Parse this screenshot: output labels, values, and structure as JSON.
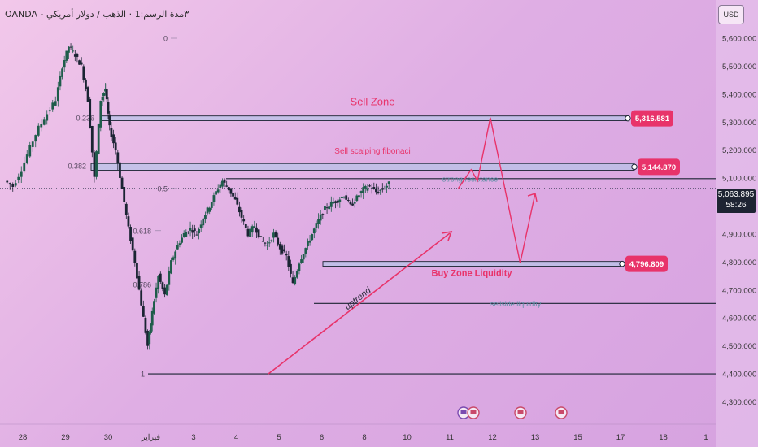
{
  "header": {
    "symbol": "OANDA - ٣مدة الرسم:1 · الذهب / دولار أمريكي",
    "currency_button": "USD"
  },
  "last_price": {
    "value": "5,063.895",
    "countdown": "58:26"
  },
  "colors": {
    "candle_up": "#1e5c4a",
    "candle_down": "#1b2433",
    "arrow": "#e8336a",
    "zone_fill": "#b7c4e8",
    "label_bg": "#e8336a",
    "teal_text": "#5b8fa4"
  },
  "chart_data": {
    "type": "candlestick",
    "title": "",
    "xlabel": "",
    "ylabel": "",
    "ylim": [
      4262,
      5650
    ],
    "y_ticks": [
      {
        "value": 5600,
        "label": "5,600.000"
      },
      {
        "value": 5500,
        "label": "5,500.000"
      },
      {
        "value": 5400,
        "label": "5,400.000"
      },
      {
        "value": 5300,
        "label": "5,300.000"
      },
      {
        "value": 5200,
        "label": "5,200.000"
      },
      {
        "value": 5100,
        "label": "5,100.000"
      },
      {
        "value": 4900,
        "label": "4,900.000"
      },
      {
        "value": 4800,
        "label": "4,800.000"
      },
      {
        "value": 4700,
        "label": "4,700.000"
      },
      {
        "value": 4600,
        "label": "4,600.000"
      },
      {
        "value": 4500,
        "label": "4,500.000"
      },
      {
        "value": 4400,
        "label": "4,400.000"
      },
      {
        "value": 4300,
        "label": "4,300.000"
      }
    ],
    "x_ticks": [
      {
        "x": 28,
        "label": "28"
      },
      {
        "x": 29,
        "label": "29"
      },
      {
        "x": 30,
        "label": "30"
      },
      {
        "x": 31,
        "label": "فبراير"
      },
      {
        "x": 32,
        "label": "3"
      },
      {
        "x": 33,
        "label": "4"
      },
      {
        "x": 34,
        "label": "5"
      },
      {
        "x": 35,
        "label": "6"
      },
      {
        "x": 36,
        "label": "8"
      },
      {
        "x": 37,
        "label": "10"
      },
      {
        "x": 38,
        "label": "11"
      },
      {
        "x": 39,
        "label": "12"
      },
      {
        "x": 40,
        "label": "13"
      },
      {
        "x": 41,
        "label": "15"
      },
      {
        "x": 42,
        "label": "17"
      },
      {
        "x": 43,
        "label": "18"
      },
      {
        "x": 44,
        "label": "1"
      }
    ],
    "price_series": [
      [
        27.6,
        5090
      ],
      [
        27.8,
        5070
      ],
      [
        28.0,
        5130
      ],
      [
        28.2,
        5210
      ],
      [
        28.4,
        5280
      ],
      [
        28.6,
        5330
      ],
      [
        28.8,
        5380
      ],
      [
        28.95,
        5500
      ],
      [
        29.1,
        5570
      ],
      [
        29.25,
        5540
      ],
      [
        29.4,
        5500
      ],
      [
        29.55,
        5380
      ],
      [
        29.7,
        5100
      ],
      [
        29.85,
        5380
      ],
      [
        29.95,
        5420
      ],
      [
        30.05,
        5280
      ],
      [
        30.2,
        5200
      ],
      [
        30.35,
        5060
      ],
      [
        30.5,
        4920
      ],
      [
        30.65,
        4800
      ],
      [
        30.8,
        4650
      ],
      [
        30.95,
        4500
      ],
      [
        31.05,
        4620
      ],
      [
        31.2,
        4750
      ],
      [
        31.35,
        4680
      ],
      [
        31.5,
        4800
      ],
      [
        31.65,
        4860
      ],
      [
        31.8,
        4900
      ],
      [
        31.95,
        4920
      ],
      [
        32.1,
        4900
      ],
      [
        32.25,
        4960
      ],
      [
        32.4,
        5000
      ],
      [
        32.55,
        5050
      ],
      [
        32.7,
        5090
      ],
      [
        32.85,
        5060
      ],
      [
        33.0,
        5020
      ],
      [
        33.15,
        4960
      ],
      [
        33.3,
        4900
      ],
      [
        33.45,
        4930
      ],
      [
        33.6,
        4880
      ],
      [
        33.75,
        4860
      ],
      [
        33.9,
        4900
      ],
      [
        34.05,
        4850
      ],
      [
        34.2,
        4820
      ],
      [
        34.35,
        4720
      ],
      [
        34.5,
        4800
      ],
      [
        34.65,
        4850
      ],
      [
        34.8,
        4900
      ],
      [
        34.95,
        4950
      ],
      [
        35.1,
        4990
      ],
      [
        35.25,
        5010
      ],
      [
        35.4,
        5020
      ],
      [
        35.55,
        5040
      ],
      [
        35.7,
        5000
      ],
      [
        35.85,
        5030
      ],
      [
        36.0,
        5060
      ],
      [
        36.15,
        5070
      ],
      [
        36.3,
        5050
      ],
      [
        36.45,
        5060
      ],
      [
        36.6,
        5080
      ]
    ],
    "fibonacci_levels": [
      {
        "level": "0",
        "price": 5600
      },
      {
        "level": "0.236",
        "price": 5316
      },
      {
        "level": "0.382",
        "price": 5144
      },
      {
        "level": "0.5",
        "price": 5063
      },
      {
        "level": "0.618",
        "price": 4912
      },
      {
        "level": "0.786",
        "price": 4720
      },
      {
        "level": "1",
        "price": 4400
      }
    ],
    "zones": [
      {
        "name": "Sell Zone",
        "price_top": 5322,
        "price_bottom": 5305,
        "price_label": "5,316.581"
      },
      {
        "name": "Sell scalping fibonaci",
        "price_top": 5152,
        "price_bottom": 5128,
        "price_label": "5,144.870"
      },
      {
        "name": "Buy Zone Liquidity",
        "price_top": 4802,
        "price_bottom": 4785,
        "price_label": "4,796.809"
      }
    ],
    "lines": [
      {
        "name": "strong resistance",
        "price": 5098
      },
      {
        "name": "sellside liquidity",
        "price": 4652
      }
    ],
    "annotations": [
      "uptrend"
    ],
    "projection_path": [
      [
        38.2,
        5063
      ],
      [
        38.5,
        5130
      ],
      [
        38.65,
        5090
      ],
      [
        38.95,
        5316
      ],
      [
        39.65,
        4796
      ],
      [
        40.0,
        5045
      ]
    ]
  }
}
